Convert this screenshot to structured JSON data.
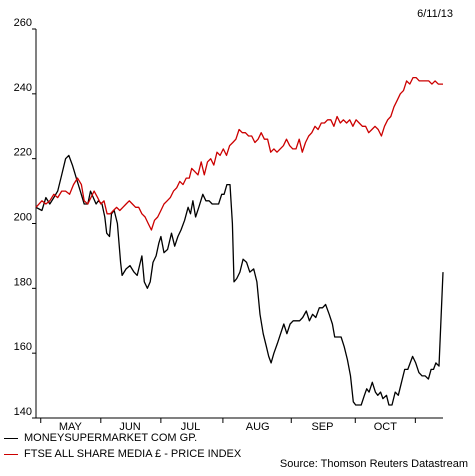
{
  "header": {
    "date": "6/11/13"
  },
  "source": "Source: Thomson Reuters Datastream",
  "chart_data": {
    "type": "line",
    "ylim": [
      140,
      260
    ],
    "yticks": [
      140,
      160,
      180,
      200,
      220,
      240,
      260
    ],
    "xlim": [
      0,
      100
    ],
    "month_labels": [
      {
        "label": "MAY",
        "pos": 8.7
      },
      {
        "label": "JUN",
        "pos": 23.8
      },
      {
        "label": "JUL",
        "pos": 39.1
      },
      {
        "label": "AUG",
        "pos": 56.1
      },
      {
        "label": "SEP",
        "pos": 72.5
      },
      {
        "label": "OCT",
        "pos": 88.4
      }
    ],
    "x_ticks": [
      1.2,
      16.4,
      31.6,
      47.3,
      64.6,
      80.8,
      96.0
    ],
    "grid": false,
    "series": [
      {
        "name": "MONEYSUPERMARKET COM GP.",
        "color": "#000000",
        "points": [
          [
            0,
            205
          ],
          [
            1.5,
            204
          ],
          [
            2.5,
            208
          ],
          [
            3.5,
            206
          ],
          [
            4.5,
            208
          ],
          [
            5.5,
            210
          ],
          [
            6.5,
            215
          ],
          [
            7.5,
            220
          ],
          [
            8.3,
            221
          ],
          [
            9.2,
            218
          ],
          [
            10.2,
            214
          ],
          [
            11.2,
            210
          ],
          [
            12.2,
            206
          ],
          [
            13.1,
            206
          ],
          [
            13.8,
            210
          ],
          [
            14.5,
            208
          ],
          [
            15.2,
            206
          ],
          [
            15.8,
            207
          ],
          [
            16.7,
            206
          ],
          [
            17.4,
            202
          ],
          [
            17.9,
            197
          ],
          [
            18.6,
            196
          ],
          [
            19.1,
            203
          ],
          [
            19.8,
            204
          ],
          [
            20.6,
            200
          ],
          [
            21.4,
            188
          ],
          [
            21.8,
            184
          ],
          [
            22.8,
            186
          ],
          [
            23.8,
            187
          ],
          [
            24.8,
            185
          ],
          [
            25.6,
            184
          ],
          [
            26.4,
            188
          ],
          [
            26.8,
            190
          ],
          [
            27.4,
            182
          ],
          [
            28.2,
            180
          ],
          [
            28.9,
            182
          ],
          [
            29.6,
            188
          ],
          [
            30.4,
            190
          ],
          [
            31.1,
            194
          ],
          [
            31.6,
            196
          ],
          [
            32.4,
            191
          ],
          [
            33.3,
            192
          ],
          [
            34.3,
            197
          ],
          [
            35.1,
            193
          ],
          [
            35.9,
            196
          ],
          [
            36.7,
            198
          ],
          [
            37.6,
            201
          ],
          [
            38.5,
            205
          ],
          [
            39.1,
            203
          ],
          [
            39.7,
            207
          ],
          [
            40.4,
            202
          ],
          [
            41.2,
            205
          ],
          [
            42.2,
            209
          ],
          [
            43.0,
            207
          ],
          [
            43.8,
            207
          ],
          [
            44.6,
            206
          ],
          [
            45.4,
            206
          ],
          [
            46.2,
            206
          ],
          [
            47.0,
            209
          ],
          [
            47.6,
            209
          ],
          [
            48.3,
            212
          ],
          [
            49.1,
            212
          ],
          [
            49.7,
            200
          ],
          [
            50.1,
            182
          ],
          [
            50.8,
            183
          ],
          [
            51.6,
            185
          ],
          [
            52.4,
            189
          ],
          [
            53.3,
            188
          ],
          [
            54.1,
            185
          ],
          [
            55.1,
            186
          ],
          [
            55.9,
            182
          ],
          [
            56.7,
            172
          ],
          [
            57.5,
            166
          ],
          [
            58.3,
            162
          ],
          [
            58.9,
            159
          ],
          [
            59.5,
            157
          ],
          [
            60.2,
            160
          ],
          [
            61.1,
            163
          ],
          [
            61.9,
            166
          ],
          [
            62.7,
            169
          ],
          [
            63.5,
            166
          ],
          [
            64.3,
            169
          ],
          [
            65.1,
            170
          ],
          [
            65.9,
            170
          ],
          [
            66.7,
            170
          ],
          [
            67.5,
            171
          ],
          [
            68.4,
            173
          ],
          [
            69.2,
            170
          ],
          [
            70.0,
            172
          ],
          [
            70.8,
            171
          ],
          [
            71.7,
            174
          ],
          [
            72.5,
            174
          ],
          [
            73.3,
            175
          ],
          [
            74.2,
            172
          ],
          [
            75.0,
            169
          ],
          [
            75.6,
            165
          ],
          [
            76.4,
            165
          ],
          [
            77.2,
            165
          ],
          [
            78.0,
            162
          ],
          [
            78.8,
            158
          ],
          [
            79.6,
            153
          ],
          [
            80.3,
            145
          ],
          [
            80.9,
            144
          ],
          [
            81.5,
            144
          ],
          [
            82.3,
            144
          ],
          [
            83.1,
            147
          ],
          [
            83.7,
            149
          ],
          [
            84.3,
            148
          ],
          [
            85.1,
            151
          ],
          [
            85.9,
            148
          ],
          [
            86.5,
            147
          ],
          [
            87.2,
            148
          ],
          [
            87.8,
            146
          ],
          [
            88.7,
            147
          ],
          [
            89.3,
            144
          ],
          [
            90.1,
            144
          ],
          [
            90.9,
            148
          ],
          [
            91.7,
            147
          ],
          [
            92.5,
            151
          ],
          [
            93.3,
            155
          ],
          [
            94.1,
            155
          ],
          [
            94.7,
            157
          ],
          [
            95.3,
            159
          ],
          [
            96.1,
            157
          ],
          [
            96.9,
            154
          ],
          [
            97.7,
            153
          ],
          [
            98.5,
            153
          ],
          [
            99.3,
            152
          ],
          [
            100,
            155
          ],
          [
            100.6,
            155
          ],
          [
            101.2,
            157
          ],
          [
            102,
            156
          ],
          [
            103,
            185
          ]
        ]
      },
      {
        "name": "FTSE ALL SHARE MEDIA £ - PRICE INDEX",
        "color": "#cc0000",
        "points": [
          [
            0,
            205
          ],
          [
            1.5,
            207
          ],
          [
            2.5,
            206
          ],
          [
            3.5,
            207
          ],
          [
            4.5,
            209
          ],
          [
            5.5,
            208
          ],
          [
            6.5,
            210
          ],
          [
            7.5,
            210
          ],
          [
            8.5,
            209
          ],
          [
            9.5,
            212
          ],
          [
            10.5,
            214
          ],
          [
            11.5,
            212
          ],
          [
            12.2,
            207
          ],
          [
            13.1,
            206
          ],
          [
            13.9,
            208
          ],
          [
            14.7,
            210
          ],
          [
            15.6,
            208
          ],
          [
            16.4,
            206
          ],
          [
            17.2,
            207
          ],
          [
            18.0,
            203
          ],
          [
            18.8,
            203
          ],
          [
            19.6,
            204
          ],
          [
            20.4,
            205
          ],
          [
            21.2,
            204
          ],
          [
            22.0,
            205
          ],
          [
            22.8,
            206
          ],
          [
            23.6,
            207
          ],
          [
            24.4,
            206
          ],
          [
            25.2,
            205
          ],
          [
            26.0,
            205
          ],
          [
            26.8,
            203
          ],
          [
            27.6,
            202
          ],
          [
            28.4,
            200
          ],
          [
            29.2,
            198
          ],
          [
            30.0,
            201
          ],
          [
            30.8,
            202
          ],
          [
            31.6,
            204
          ],
          [
            32.4,
            206
          ],
          [
            33.2,
            207
          ],
          [
            34.0,
            208
          ],
          [
            34.8,
            210
          ],
          [
            35.6,
            211
          ],
          [
            36.4,
            213
          ],
          [
            37.2,
            212
          ],
          [
            38.0,
            214
          ],
          [
            38.8,
            214
          ],
          [
            39.4,
            217
          ],
          [
            40.2,
            216
          ],
          [
            41.0,
            215
          ],
          [
            41.8,
            219
          ],
          [
            42.6,
            215
          ],
          [
            43.4,
            219
          ],
          [
            44.2,
            220
          ],
          [
            45.0,
            218
          ],
          [
            45.8,
            222
          ],
          [
            46.6,
            221
          ],
          [
            47.4,
            223
          ],
          [
            48.2,
            221
          ],
          [
            49.0,
            224
          ],
          [
            49.8,
            225
          ],
          [
            50.6,
            226
          ],
          [
            51.4,
            229
          ],
          [
            52.2,
            228
          ],
          [
            53.0,
            228
          ],
          [
            53.8,
            227
          ],
          [
            54.6,
            227
          ],
          [
            55.4,
            225
          ],
          [
            56.2,
            226
          ],
          [
            57.0,
            228
          ],
          [
            57.8,
            226
          ],
          [
            58.6,
            226
          ],
          [
            59.4,
            222
          ],
          [
            60.2,
            223
          ],
          [
            61.0,
            222
          ],
          [
            61.8,
            223
          ],
          [
            62.6,
            224
          ],
          [
            63.4,
            226
          ],
          [
            64.2,
            224
          ],
          [
            65.0,
            223
          ],
          [
            65.8,
            223
          ],
          [
            66.6,
            226
          ],
          [
            67.4,
            222
          ],
          [
            68.2,
            225
          ],
          [
            69.0,
            227
          ],
          [
            69.8,
            228
          ],
          [
            70.6,
            230
          ],
          [
            71.4,
            229
          ],
          [
            72.2,
            231
          ],
          [
            73.0,
            231
          ],
          [
            73.8,
            232
          ],
          [
            74.6,
            232
          ],
          [
            75.4,
            230
          ],
          [
            76.2,
            233
          ],
          [
            77.0,
            231
          ],
          [
            77.8,
            232
          ],
          [
            78.6,
            231
          ],
          [
            79.4,
            232
          ],
          [
            80.2,
            230
          ],
          [
            81.0,
            232
          ],
          [
            81.8,
            231
          ],
          [
            82.6,
            230
          ],
          [
            83.4,
            230
          ],
          [
            84.2,
            228
          ],
          [
            85.0,
            229
          ],
          [
            85.8,
            230
          ],
          [
            86.6,
            229
          ],
          [
            87.4,
            227
          ],
          [
            88.2,
            230
          ],
          [
            89.0,
            232
          ],
          [
            89.8,
            233
          ],
          [
            90.6,
            236
          ],
          [
            91.4,
            238
          ],
          [
            92.2,
            240
          ],
          [
            93.0,
            241
          ],
          [
            93.8,
            244
          ],
          [
            94.6,
            243
          ],
          [
            95.4,
            245
          ],
          [
            96.2,
            245
          ],
          [
            97.0,
            244
          ],
          [
            97.8,
            244
          ],
          [
            98.6,
            244
          ],
          [
            99.4,
            244
          ],
          [
            100.2,
            243
          ],
          [
            101.0,
            244
          ],
          [
            101.8,
            243
          ],
          [
            103,
            243
          ]
        ]
      }
    ]
  }
}
